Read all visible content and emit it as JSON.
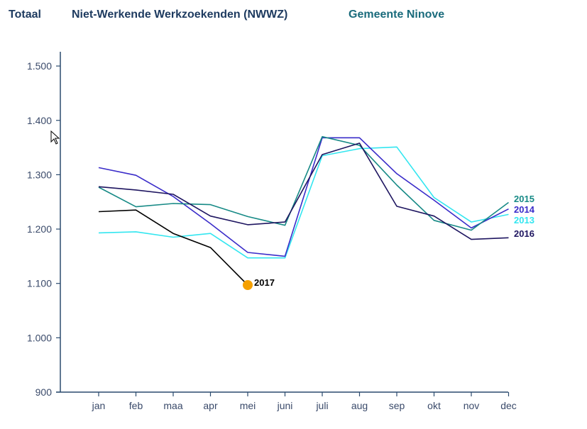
{
  "header": {
    "total": "Totaal",
    "category": "Niet-Werkende Werkzoekenden (NWWZ)",
    "region": "Gemeente Ninove"
  },
  "chart_data": {
    "type": "line",
    "title": "Niet-Werkende Werkzoekenden (NWWZ) - Gemeente Ninove",
    "categories": [
      "jan",
      "feb",
      "maa",
      "apr",
      "mei",
      "juni",
      "juli",
      "aug",
      "sep",
      "okt",
      "nov",
      "dec"
    ],
    "yticks": [
      900,
      1000,
      1100,
      1200,
      1300,
      1400,
      1500
    ],
    "ytick_labels": [
      "900",
      "1.000",
      "1.100",
      "1.200",
      "1.300",
      "1.400",
      "1.500"
    ],
    "ylim": [
      900,
      1525
    ],
    "xlabel": "",
    "ylabel": "",
    "grid": false,
    "series": [
      {
        "name": "2013",
        "color": "#33e6f0",
        "values": [
          1193,
          1195,
          1185,
          1192,
          1147,
          1147,
          1335,
          1348,
          1351,
          1258,
          1213,
          1227
        ]
      },
      {
        "name": "2014",
        "color": "#3a2cc9",
        "values": [
          1313,
          1299,
          1260,
          1210,
          1157,
          1150,
          1368,
          1368,
          1302,
          1253,
          1202,
          1237
        ]
      },
      {
        "name": "2015",
        "color": "#178a86",
        "values": [
          1277,
          1241,
          1247,
          1245,
          1223,
          1207,
          1370,
          1354,
          1281,
          1216,
          1198,
          1249
        ]
      },
      {
        "name": "2016",
        "color": "#1e1560",
        "values": [
          1278,
          1272,
          1264,
          1224,
          1208,
          1213,
          1337,
          1358,
          1242,
          1224,
          1181,
          1184
        ]
      },
      {
        "name": "2017",
        "color": "#000000",
        "values": [
          1232,
          1235,
          1192,
          1166,
          1097,
          null,
          null,
          null,
          null,
          null,
          null,
          null
        ]
      }
    ],
    "last_point_marker": {
      "series": "2017",
      "category": "mei",
      "value": 1097,
      "color": "#f5a000"
    }
  }
}
